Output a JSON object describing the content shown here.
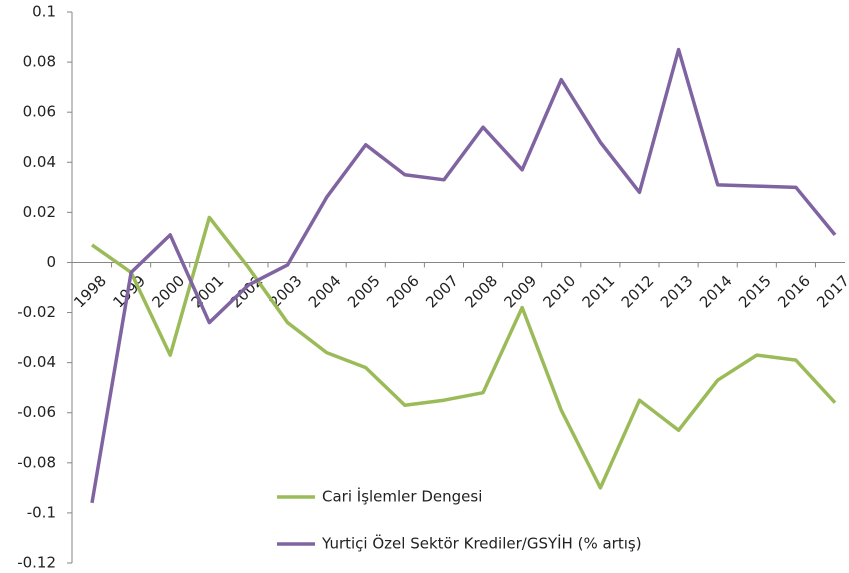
{
  "chart_data": {
    "type": "line",
    "categories": [
      "1998",
      "1999",
      "2000",
      "2001",
      "2002",
      "2003",
      "2004",
      "2005",
      "2006",
      "2007",
      "2008",
      "2009",
      "2010",
      "2011",
      "2012",
      "2013",
      "2014",
      "2015",
      "2016",
      "2017"
    ],
    "series": [
      {
        "name": "Cari İşlemler Dengesi",
        "color": "#9bbb59",
        "values": [
          0.007,
          -0.004,
          -0.037,
          0.018,
          -0.002,
          -0.024,
          -0.036,
          -0.042,
          -0.057,
          -0.055,
          -0.052,
          -0.018,
          -0.059,
          -0.09,
          -0.055,
          -0.067,
          -0.047,
          -0.037,
          -0.039,
          -0.056
        ]
      },
      {
        "name": "Yurtiçi Özel Sektör Krediler/GSYİH (% artış)",
        "color": "#8064a2",
        "values": [
          -0.096,
          -0.004,
          0.011,
          -0.024,
          -0.009,
          -0.001,
          0.026,
          0.047,
          0.035,
          0.033,
          0.054,
          0.037,
          0.073,
          0.048,
          0.028,
          0.085,
          0.031,
          0.0305,
          0.03,
          0.011
        ]
      }
    ],
    "ylim": [
      -0.12,
      0.1
    ],
    "yticks": [
      -0.12,
      -0.1,
      -0.08,
      -0.06,
      -0.04,
      -0.02,
      0,
      0.02,
      0.04,
      0.06,
      0.08,
      0.1
    ],
    "grid": false
  }
}
